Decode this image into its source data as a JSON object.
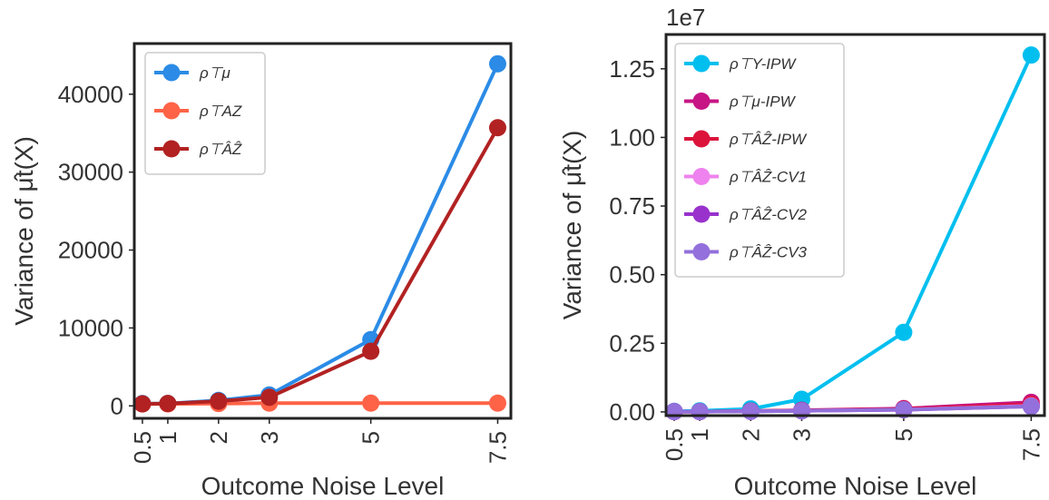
{
  "chart_data": [
    {
      "type": "line",
      "x": [
        0.5,
        1,
        2,
        3,
        5,
        7.5
      ],
      "xticks": [
        "0.5",
        "1",
        "2",
        "3",
        "5",
        "7.5"
      ],
      "xlabel": "Outcome Noise Level",
      "ylabel": "Variance of μ̂t(X)",
      "ylim": [
        -1600,
        46500
      ],
      "yticks": [
        0,
        10000,
        20000,
        30000,
        40000
      ],
      "ytick_labels": [
        "0",
        "10000",
        "20000",
        "30000",
        "40000"
      ],
      "legend_position": "top-left",
      "grid": false,
      "series": [
        {
          "name": "ρ⊤μ",
          "color": "#2b8be6",
          "values": [
            300,
            300,
            700,
            1400,
            8500,
            43900
          ]
        },
        {
          "name": "ρ⊤AZ",
          "color": "#ff6347",
          "values": [
            250,
            250,
            300,
            350,
            350,
            350
          ]
        },
        {
          "name": "ρ⊤ÂẐ",
          "color": "#b22222",
          "values": [
            250,
            300,
            600,
            1100,
            7000,
            35700
          ]
        }
      ]
    },
    {
      "type": "line",
      "x": [
        0.5,
        1,
        2,
        3,
        5,
        7.5
      ],
      "xticks": [
        "0.5",
        "1",
        "2",
        "3",
        "5",
        "7.5"
      ],
      "xlabel": "Outcome Noise Level",
      "ylabel": "Variance of μ̂t(X)",
      "y_scale_label": "1e7",
      "ylim": [
        -0.0135,
        1.375
      ],
      "yticks": [
        0.0,
        0.25,
        0.5,
        0.75,
        1.0,
        1.25
      ],
      "ytick_labels": [
        "0.00",
        "0.25",
        "0.50",
        "0.75",
        "1.00",
        "1.25"
      ],
      "legend_position": "top-left",
      "grid": false,
      "series": [
        {
          "name": "ρ⊤Y-IPW",
          "color": "#00bfef",
          "values": [
            0.002,
            0.004,
            0.011,
            0.046,
            0.29,
            1.3
          ]
        },
        {
          "name": "ρ⊤μ-IPW",
          "color": "#c71585",
          "values": [
            0.001,
            0.001,
            0.003,
            0.006,
            0.012,
            0.035
          ]
        },
        {
          "name": "ρ⊤ÂẐ-IPW",
          "color": "#dc143c",
          "values": [
            0.001,
            0.001,
            0.003,
            0.005,
            0.01,
            0.028
          ]
        },
        {
          "name": "ρ⊤ÂẐ-CV1",
          "color": "#ee82ee",
          "values": [
            0.001,
            0.001,
            0.002,
            0.004,
            0.008,
            0.022
          ]
        },
        {
          "name": "ρ⊤ÂẐ-CV2",
          "color": "#9932cc",
          "values": [
            0.001,
            0.001,
            0.002,
            0.004,
            0.008,
            0.02
          ]
        },
        {
          "name": "ρ⊤ÂẐ-CV3",
          "color": "#9370db",
          "values": [
            0.001,
            0.001,
            0.002,
            0.004,
            0.008,
            0.02
          ]
        }
      ]
    }
  ]
}
